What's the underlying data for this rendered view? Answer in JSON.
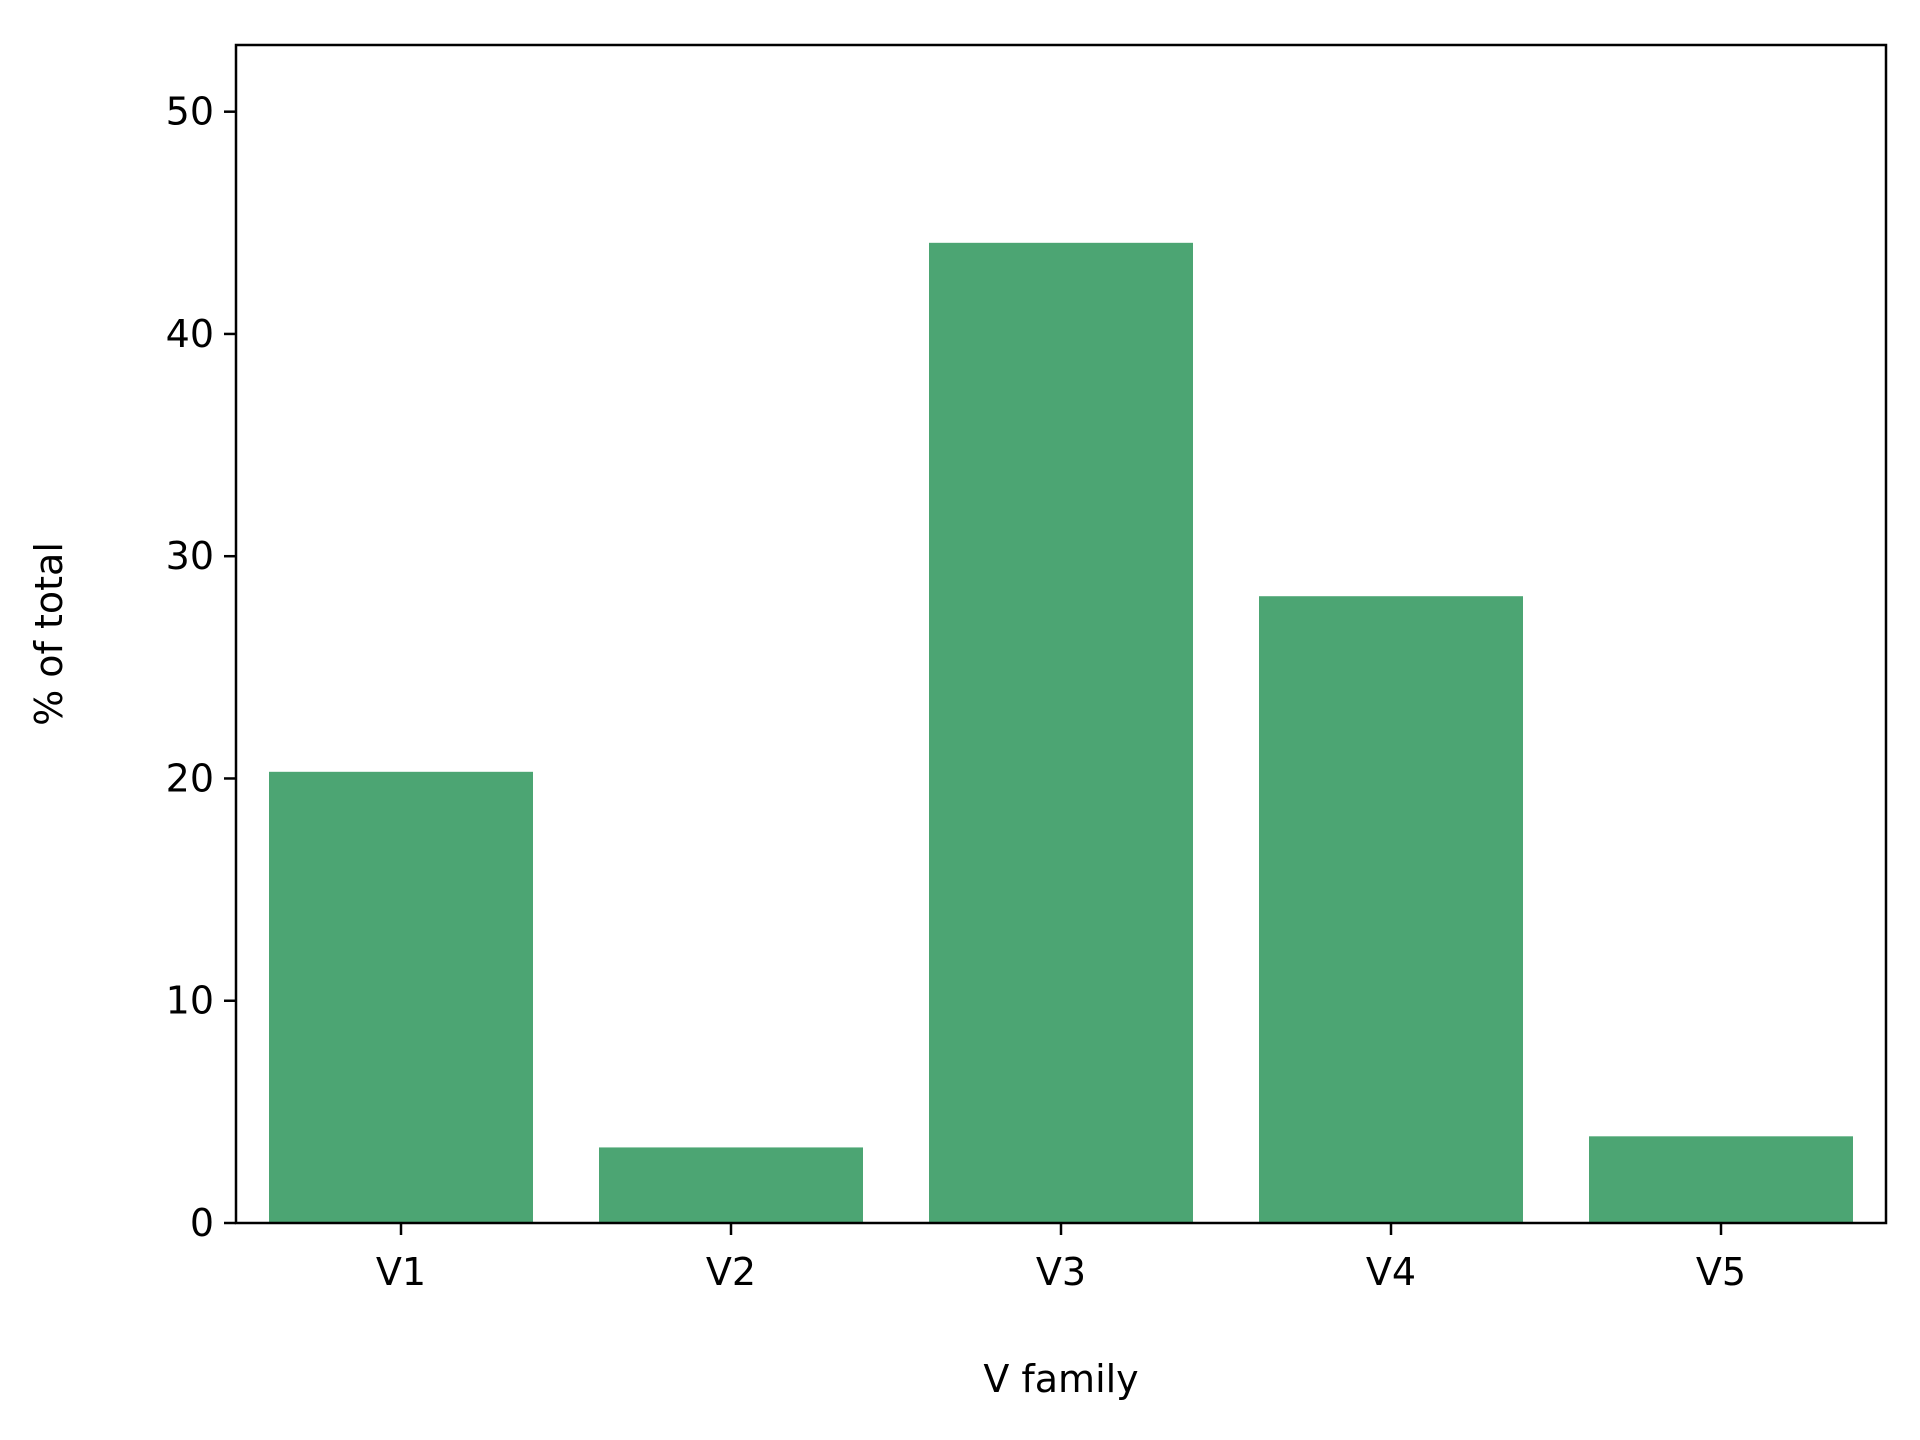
{
  "chart_data": {
    "type": "bar",
    "categories": [
      "V1",
      "V2",
      "V3",
      "V4",
      "V5"
    ],
    "values": [
      20.3,
      3.4,
      44.1,
      28.2,
      3.9
    ],
    "title": "",
    "xlabel": "V family",
    "ylabel": "% of total",
    "ylim": [
      0,
      53
    ],
    "yticks": [
      0,
      10,
      20,
      30,
      40,
      50
    ],
    "grid": false,
    "bar_color": "#4ca573"
  }
}
